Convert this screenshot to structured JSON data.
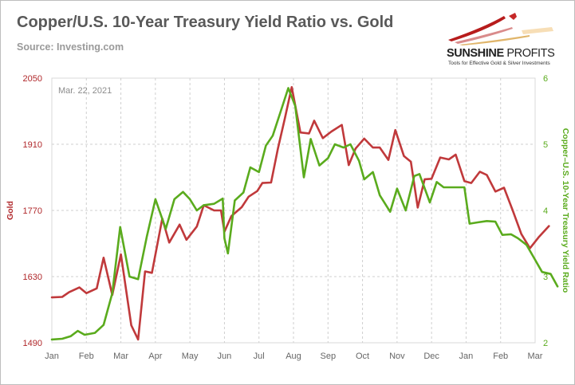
{
  "header": {
    "title": "Copper/U.S. 10-Year Treasury Yield Ratio vs. Gold",
    "source": "Source: Investing.com"
  },
  "logo": {
    "name_bold": "SUNSHINE",
    "name_light": " PROFITS",
    "tagline": "Tools for Effective Gold & Silver Investments"
  },
  "colors": {
    "gold": "#c0393b",
    "ratio": "#5aab1d",
    "left_axis_text": "#b0282b",
    "right_axis_text": "#5aab1d",
    "grid": "#cfcfcf"
  },
  "chart_data": {
    "type": "line",
    "annotation": "Mar. 22, 2021",
    "x_labels": [
      "Jan",
      "Feb",
      "Mar",
      "Apr",
      "May",
      "Jun",
      "Jul",
      "Aug",
      "Sep",
      "Oct",
      "Nov",
      "Dec",
      "Jan",
      "Feb",
      "Mar"
    ],
    "y_left": {
      "label": "Gold",
      "ticks": [
        1490,
        1630,
        1770,
        1910,
        2050
      ],
      "range": [
        1490,
        2050
      ]
    },
    "y_right": {
      "label": "Copper–U.S. 10-Year Treasury Yield Ratio",
      "ticks": [
        2,
        3,
        4,
        5,
        6
      ],
      "range": [
        2,
        6
      ]
    },
    "grid": true,
    "series": [
      {
        "name": "Gold",
        "axis": "left",
        "points": [
          [
            0.0,
            1586
          ],
          [
            0.3,
            1587
          ],
          [
            0.5,
            1597
          ],
          [
            0.8,
            1607
          ],
          [
            1.0,
            1595
          ],
          [
            1.3,
            1605
          ],
          [
            1.5,
            1670
          ],
          [
            1.75,
            1591
          ],
          [
            2.0,
            1677
          ],
          [
            2.3,
            1527
          ],
          [
            2.5,
            1497
          ],
          [
            2.7,
            1641
          ],
          [
            2.9,
            1638
          ],
          [
            3.2,
            1753
          ],
          [
            3.4,
            1702
          ],
          [
            3.7,
            1740
          ],
          [
            3.9,
            1708
          ],
          [
            4.2,
            1736
          ],
          [
            4.4,
            1781
          ],
          [
            4.7,
            1770
          ],
          [
            4.9,
            1770
          ],
          [
            5.0,
            1725
          ],
          [
            5.2,
            1758
          ],
          [
            5.5,
            1777
          ],
          [
            5.7,
            1799
          ],
          [
            5.95,
            1811
          ],
          [
            6.1,
            1828
          ],
          [
            6.35,
            1829
          ],
          [
            6.55,
            1901
          ],
          [
            6.75,
            1965
          ],
          [
            6.95,
            2031
          ],
          [
            7.2,
            1935
          ],
          [
            7.45,
            1933
          ],
          [
            7.6,
            1960
          ],
          [
            7.85,
            1923
          ],
          [
            8.1,
            1937
          ],
          [
            8.4,
            1951
          ],
          [
            8.6,
            1866
          ],
          [
            8.8,
            1901
          ],
          [
            9.05,
            1922
          ],
          [
            9.3,
            1903
          ],
          [
            9.5,
            1903
          ],
          [
            9.75,
            1877
          ],
          [
            9.95,
            1940
          ],
          [
            10.2,
            1885
          ],
          [
            10.4,
            1873
          ],
          [
            10.6,
            1776
          ],
          [
            10.8,
            1836
          ],
          [
            11.0,
            1837
          ],
          [
            11.25,
            1882
          ],
          [
            11.5,
            1878
          ],
          [
            11.7,
            1888
          ],
          [
            11.95,
            1832
          ],
          [
            12.15,
            1828
          ],
          [
            12.4,
            1852
          ],
          [
            12.6,
            1845
          ],
          [
            12.85,
            1810
          ],
          [
            13.1,
            1818
          ],
          [
            13.35,
            1770
          ],
          [
            13.6,
            1720
          ],
          [
            13.85,
            1690
          ],
          [
            14.1,
            1713
          ],
          [
            14.4,
            1737
          ]
        ]
      },
      {
        "name": "Copper–U.S. 10-Year Treasury Yield Ratio",
        "axis": "right",
        "points": [
          [
            0.0,
            2.05
          ],
          [
            0.3,
            2.06
          ],
          [
            0.55,
            2.1
          ],
          [
            0.75,
            2.18
          ],
          [
            0.95,
            2.12
          ],
          [
            1.25,
            2.15
          ],
          [
            1.5,
            2.27
          ],
          [
            1.75,
            2.75
          ],
          [
            1.98,
            3.75
          ],
          [
            2.25,
            3.0
          ],
          [
            2.5,
            2.96
          ],
          [
            2.75,
            3.6
          ],
          [
            3.0,
            4.17
          ],
          [
            3.3,
            3.72
          ],
          [
            3.55,
            4.17
          ],
          [
            3.8,
            4.28
          ],
          [
            4.0,
            4.17
          ],
          [
            4.2,
            4.0
          ],
          [
            4.4,
            4.08
          ],
          [
            4.7,
            4.1
          ],
          [
            4.95,
            4.18
          ],
          [
            5.0,
            3.58
          ],
          [
            5.1,
            3.35
          ],
          [
            5.3,
            4.15
          ],
          [
            5.55,
            4.27
          ],
          [
            5.75,
            4.65
          ],
          [
            6.0,
            4.58
          ],
          [
            6.2,
            4.98
          ],
          [
            6.4,
            5.13
          ],
          [
            6.6,
            5.45
          ],
          [
            6.85,
            5.85
          ],
          [
            7.05,
            5.58
          ],
          [
            7.3,
            4.5
          ],
          [
            7.5,
            5.08
          ],
          [
            7.75,
            4.68
          ],
          [
            8.0,
            4.79
          ],
          [
            8.2,
            5.0
          ],
          [
            8.45,
            4.95
          ],
          [
            8.65,
            5.0
          ],
          [
            8.9,
            4.75
          ],
          [
            9.05,
            4.47
          ],
          [
            9.3,
            4.58
          ],
          [
            9.5,
            4.23
          ],
          [
            9.8,
            3.98
          ],
          [
            10.0,
            4.33
          ],
          [
            10.25,
            4.0
          ],
          [
            10.5,
            4.52
          ],
          [
            10.65,
            4.55
          ],
          [
            10.95,
            4.12
          ],
          [
            11.15,
            4.43
          ],
          [
            11.35,
            4.35
          ],
          [
            11.6,
            4.35
          ],
          [
            11.95,
            4.35
          ],
          [
            12.1,
            3.8
          ],
          [
            12.35,
            3.82
          ],
          [
            12.6,
            3.84
          ],
          [
            12.85,
            3.83
          ],
          [
            13.05,
            3.63
          ],
          [
            13.3,
            3.64
          ],
          [
            13.5,
            3.58
          ],
          [
            13.75,
            3.48
          ],
          [
            13.95,
            3.3
          ],
          [
            14.2,
            3.07
          ],
          [
            14.45,
            3.04
          ],
          [
            14.65,
            2.85
          ]
        ]
      }
    ]
  }
}
